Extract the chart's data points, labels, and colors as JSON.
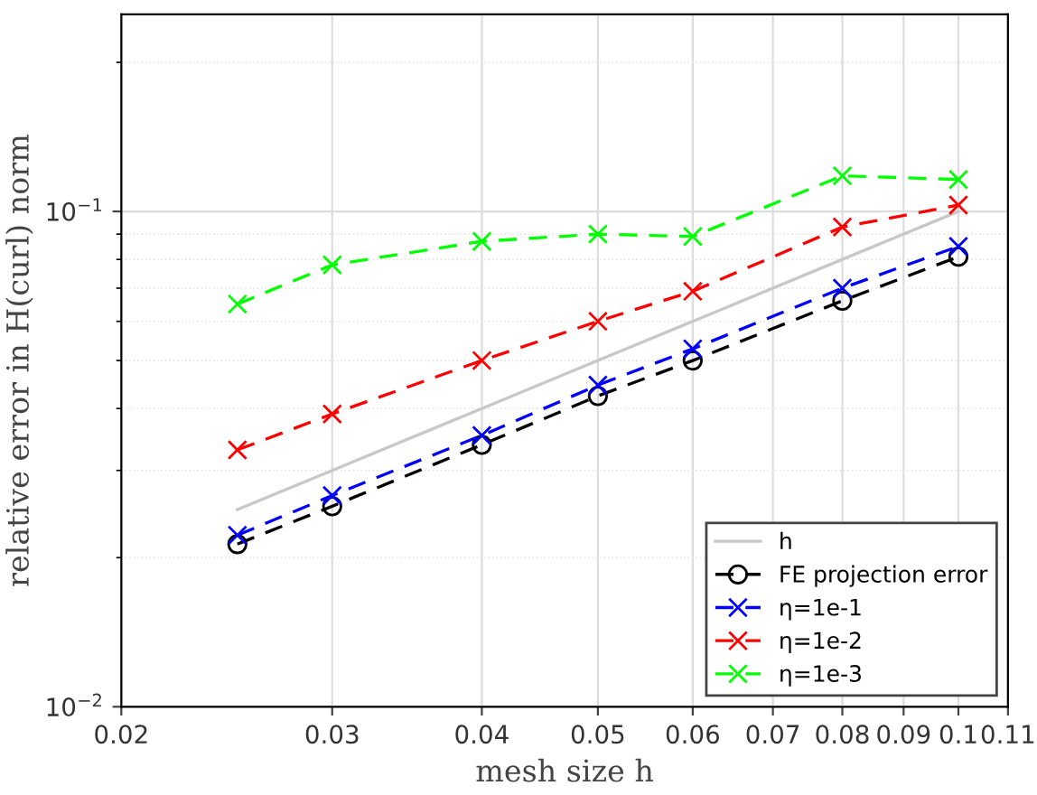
{
  "chart_data": {
    "type": "line",
    "xlabel": "mesh size h",
    "ylabel": "relative error in H(curl) norm",
    "log": "xy",
    "xlim": [
      0.02,
      0.11
    ],
    "ylim": [
      0.01,
      0.25
    ],
    "xticks": [
      0.02,
      0.03,
      0.04,
      0.05,
      0.06,
      0.07,
      0.08,
      0.09,
      {
        "value": 0.1,
        "label": "0.1"
      },
      0.11
    ],
    "yticks": [
      {
        "value": 0.01,
        "label": "10$^{−2}$"
      },
      {
        "value": 0.1,
        "label": "10$^{−1}$"
      }
    ],
    "grid": true,
    "legend": "bottom right",
    "x": [
      0.025,
      0.03,
      0.04,
      0.05,
      0.06,
      0.08,
      0.1
    ],
    "series": [
      {
        "name": "h",
        "color": "#c8c8c8",
        "marker": "none",
        "line_style": "solid",
        "values": [
          0.025,
          0.03,
          0.04,
          0.05,
          0.06,
          0.08,
          0.1
        ]
      },
      {
        "name": "FE projection error",
        "color": "#000000",
        "marker": "circle",
        "line_style": "dashed",
        "values": [
          0.0213,
          0.0254,
          0.0338,
          0.0424,
          0.05,
          0.066,
          0.081
        ]
      },
      {
        "name": "η=1e-1",
        "color": "#0000ff",
        "marker": "cross",
        "line_style": "dashed",
        "values": [
          0.0222,
          0.0267,
          0.0353,
          0.0446,
          0.0528,
          0.07,
          0.085
        ]
      },
      {
        "name": "η=1e-2",
        "color": "#ff0000",
        "marker": "cross",
        "line_style": "dashed",
        "values": [
          0.033,
          0.039,
          0.05,
          0.06,
          0.069,
          0.093,
          0.103
        ]
      },
      {
        "name": "η=1e-3",
        "color": "#00ff00",
        "marker": "cross",
        "line_style": "dashed",
        "values": [
          0.065,
          0.078,
          0.087,
          0.09,
          0.089,
          0.118,
          0.116
        ]
      }
    ]
  }
}
